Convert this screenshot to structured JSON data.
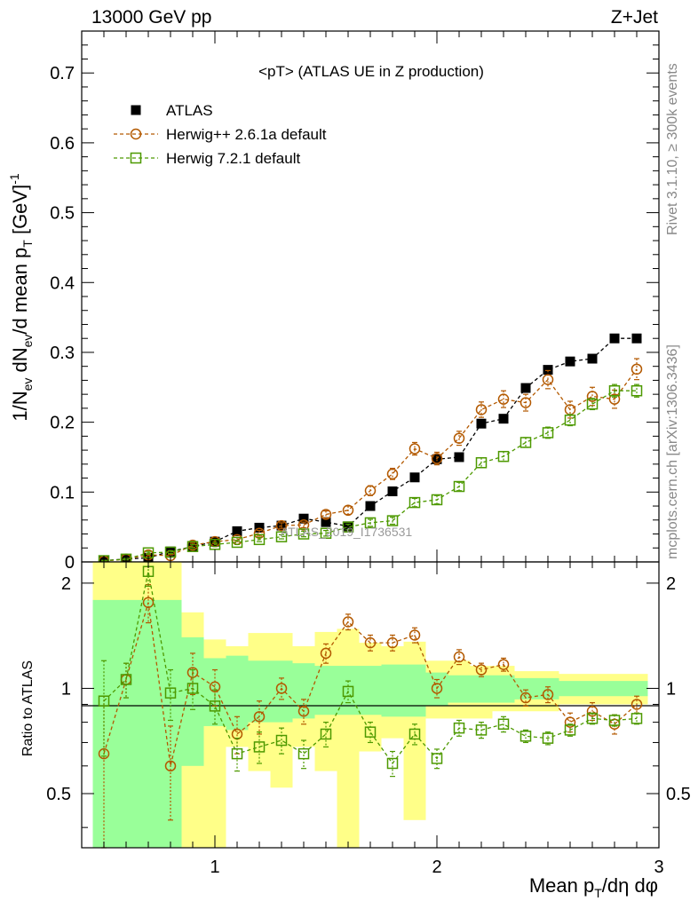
{
  "header": {
    "left": "13000 GeV pp",
    "right": "Z+Jet"
  },
  "side_labels": {
    "rivet": "Rivet 3.1.10, ≥ 300k events",
    "mcplots": "mcplots.cern.ch [arXiv:1306.3436]"
  },
  "watermark": "ATLAS_2019_I1736531",
  "chart_data": [
    {
      "type": "scatter",
      "title": "<pT> (ATLAS UE in Z production)",
      "xlabel": "Mean pT/dη dφ",
      "ylabel": "1/Nev dNev/d mean pT [GeV]^-1",
      "xlim": [
        0.4,
        3.0
      ],
      "ylim": [
        0,
        0.76
      ],
      "x_ticks": [
        1,
        2,
        3
      ],
      "y_ticks": [
        0,
        0.1,
        0.2,
        0.3,
        0.4,
        0.5,
        0.6,
        0.7
      ],
      "y_tick_labels": [
        "0",
        "0.1",
        "0.2",
        "0.3",
        "0.4",
        "0.5",
        "0.6",
        "0.7"
      ],
      "x": [
        0.5,
        0.6,
        0.7,
        0.8,
        0.9,
        1.0,
        1.1,
        1.2,
        1.3,
        1.4,
        1.5,
        1.6,
        1.7,
        1.8,
        1.9,
        2.0,
        2.1,
        2.2,
        2.3,
        2.4,
        2.5,
        2.6,
        2.7,
        2.8,
        2.9
      ],
      "legend": [
        "ATLAS",
        "Herwig++ 2.6.1a default",
        "Herwig 7.2.1 default"
      ],
      "series": [
        {
          "name": "ATLAS",
          "color": "#000000",
          "marker": "filled-square",
          "values": [
            0.002,
            0.004,
            0.006,
            0.015,
            0.022,
            0.029,
            0.044,
            0.049,
            0.052,
            0.062,
            0.057,
            0.051,
            0.08,
            0.101,
            0.121,
            0.147,
            0.15,
            0.198,
            0.205,
            0.249,
            0.275,
            0.287,
            0.291,
            0.32,
            0.32
          ]
        },
        {
          "name": "Herwig++ 2.6.1a default",
          "color": "#b35900",
          "marker": "open-circle",
          "values": [
            0.0013,
            0.004,
            0.01,
            0.009,
            0.024,
            0.029,
            0.032,
            0.041,
            0.052,
            0.053,
            0.068,
            0.074,
            0.102,
            0.126,
            0.162,
            0.148,
            0.177,
            0.218,
            0.233,
            0.228,
            0.261,
            0.218,
            0.237,
            0.233,
            0.276
          ]
        },
        {
          "name": "Herwig 7.2.1 default",
          "color": "#4d9900",
          "marker": "open-square",
          "values": [
            0.0018,
            0.004,
            0.013,
            0.014,
            0.022,
            0.025,
            0.028,
            0.032,
            0.036,
            0.04,
            0.041,
            0.05,
            0.056,
            0.059,
            0.085,
            0.089,
            0.108,
            0.142,
            0.151,
            0.171,
            0.185,
            0.203,
            0.226,
            0.245,
            0.245
          ]
        }
      ],
      "errors": {
        "Herwig++ 2.6.1a default": [
          0.0005,
          0.001,
          0.002,
          0.002,
          0.003,
          0.003,
          0.003,
          0.004,
          0.004,
          0.004,
          0.005,
          0.006,
          0.007,
          0.008,
          0.009,
          0.009,
          0.01,
          0.011,
          0.012,
          0.012,
          0.013,
          0.012,
          0.013,
          0.013,
          0.015
        ],
        "Herwig 7.2.1 default": [
          0.0005,
          0.001,
          0.002,
          0.002,
          0.003,
          0.003,
          0.003,
          0.003,
          0.003,
          0.004,
          0.004,
          0.004,
          0.005,
          0.005,
          0.006,
          0.006,
          0.006,
          0.007,
          0.007,
          0.007,
          0.008,
          0.008,
          0.008,
          0.009,
          0.009
        ]
      }
    },
    {
      "type": "scatter",
      "ylabel": "Ratio to ATLAS",
      "xlabel": "Mean pT/dη dφ",
      "xlim": [
        0.4,
        3.0
      ],
      "ylim": [
        0.35,
        2.3
      ],
      "x_ticks": [
        1,
        2,
        3
      ],
      "y_ticks": [
        0.5,
        1,
        2
      ],
      "y_tick_labels": [
        "0.5",
        "1",
        "2"
      ],
      "reference": 1,
      "bands": {
        "x_edges": [
          0.45,
          0.55,
          0.65,
          0.75,
          0.85,
          0.95,
          1.05,
          1.15,
          1.25,
          1.35,
          1.45,
          1.55,
          1.65,
          1.75,
          1.85,
          1.95,
          2.05,
          2.15,
          2.25,
          2.35,
          2.45,
          2.55,
          2.65,
          2.75,
          2.85,
          2.95
        ],
        "inner": {
          "color": "#99ff99",
          "lo": [
            0.35,
            0.35,
            0.35,
            0.35,
            0.6,
            0.78,
            0.76,
            0.8,
            0.8,
            0.82,
            0.84,
            0.84,
            0.84,
            0.83,
            0.83,
            0.89,
            0.91,
            0.91,
            0.91,
            0.93,
            0.93,
            0.95,
            0.95,
            0.95,
            0.95
          ],
          "hi": [
            1.79,
            1.79,
            1.79,
            1.79,
            1.4,
            1.22,
            1.24,
            1.2,
            1.2,
            1.18,
            1.16,
            1.16,
            1.16,
            1.17,
            1.17,
            1.11,
            1.09,
            1.09,
            1.09,
            1.07,
            1.07,
            1.05,
            1.05,
            1.05,
            1.05
          ]
        },
        "outer": {
          "color": "#ffff88",
          "lo": [
            0.35,
            0.35,
            0.35,
            0.35,
            0.35,
            0.35,
            0.68,
            0.58,
            0.52,
            0.68,
            0.58,
            0.35,
            0.66,
            0.72,
            0.42,
            0.82,
            0.82,
            0.82,
            0.86,
            0.86,
            0.86,
            0.9,
            0.9,
            0.9,
            0.9
          ],
          "hi": [
            2.3,
            2.3,
            2.3,
            2.3,
            1.65,
            1.38,
            1.32,
            1.44,
            1.44,
            1.32,
            1.45,
            1.48,
            1.35,
            1.32,
            1.36,
            1.2,
            1.2,
            1.16,
            1.16,
            1.12,
            1.12,
            1.1,
            1.1,
            1.1,
            1.1
          ]
        }
      },
      "x": [
        0.5,
        0.6,
        0.7,
        0.8,
        0.9,
        1.0,
        1.1,
        1.2,
        1.3,
        1.4,
        1.5,
        1.6,
        1.7,
        1.8,
        1.9,
        2.0,
        2.1,
        2.2,
        2.3,
        2.4,
        2.5,
        2.6,
        2.7,
        2.8,
        2.9
      ],
      "series": [
        {
          "name": "Herwig++ 2.6.1a default",
          "color": "#b35900",
          "marker": "open-circle",
          "values": [
            0.65,
            1.06,
            1.76,
            0.6,
            1.11,
            1.01,
            0.74,
            0.83,
            1.0,
            0.86,
            1.26,
            1.55,
            1.35,
            1.35,
            1.42,
            1.0,
            1.23,
            1.13,
            1.17,
            0.94,
            0.96,
            0.8,
            0.86,
            0.79,
            0.9
          ]
        },
        {
          "name": "Herwig 7.2.1 default",
          "color": "#4d9900",
          "marker": "open-square",
          "values": [
            0.92,
            1.06,
            2.16,
            0.97,
            1.0,
            0.89,
            0.65,
            0.68,
            0.71,
            0.65,
            0.74,
            0.98,
            0.75,
            0.61,
            0.74,
            0.63,
            0.77,
            0.76,
            0.79,
            0.73,
            0.72,
            0.76,
            0.82,
            0.81,
            0.82
          ]
        }
      ],
      "errors": {
        "Herwig++ 2.6.1a default": [
          0.3,
          0.12,
          0.22,
          0.18,
          0.15,
          0.12,
          0.09,
          0.09,
          0.07,
          0.07,
          0.08,
          0.08,
          0.07,
          0.07,
          0.07,
          0.06,
          0.06,
          0.05,
          0.05,
          0.05,
          0.05,
          0.05,
          0.05,
          0.05,
          0.05
        ],
        "Herwig 7.2.1 default": [
          0.28,
          0.12,
          0.2,
          0.16,
          0.13,
          0.1,
          0.07,
          0.07,
          0.06,
          0.06,
          0.06,
          0.07,
          0.05,
          0.05,
          0.05,
          0.04,
          0.04,
          0.04,
          0.04,
          0.03,
          0.03,
          0.03,
          0.03,
          0.03,
          0.03
        ]
      }
    }
  ]
}
